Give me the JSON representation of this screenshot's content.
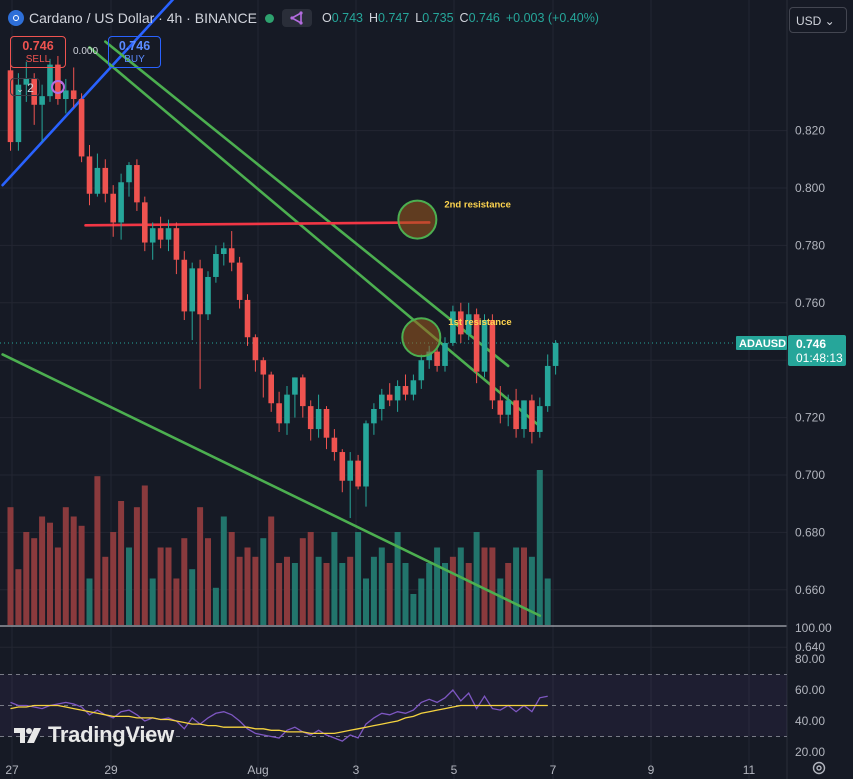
{
  "header": {
    "symbol_title": "Cardano / US Dollar · 4h · BINANCE",
    "ohlc": [
      {
        "label": "O",
        "value": "0.743"
      },
      {
        "label": "H",
        "value": "0.747"
      },
      {
        "label": "L",
        "value": "0.735"
      },
      {
        "label": "C",
        "value": "0.746"
      },
      {
        "label": "",
        "value": "+0.003 (+0.40%)"
      }
    ]
  },
  "trade": {
    "sell_price": "0.746",
    "sell_label": "SELL",
    "spread": "0.000",
    "buy_price": "0.746",
    "buy_label": "BUY"
  },
  "indicators": {
    "count": "2"
  },
  "currency": "USD ⌄",
  "brand": "TradingView",
  "colors": {
    "background": "#161a25",
    "up": "#26a69a",
    "down": "#ef5350",
    "trendline_green": "#4caf50",
    "trendline_blue": "#2962ff",
    "resistance_line": "#f23645",
    "rsi": "#7e57c2",
    "rsi_ma": "#f5d33f",
    "annotation_text": "#ffd54f"
  },
  "chart_data": [
    {
      "type": "candlestick",
      "symbol": "ADAUSD",
      "timeframe": "4h",
      "x_ticks": [
        "27",
        "29",
        "Aug",
        "3",
        "5",
        "7",
        "9",
        "11"
      ],
      "y_ticks": [
        0.64,
        0.66,
        0.68,
        0.7,
        0.72,
        0.74,
        0.76,
        0.78,
        0.8,
        0.82
      ],
      "ylim": [
        0.624,
        0.836
      ],
      "last_price": {
        "symbol_label": "ADAUSD",
        "price": "0.746",
        "countdown": "01:48:13"
      },
      "candles": [
        [
          0.841,
          0.846,
          0.813,
          0.816
        ],
        [
          0.816,
          0.84,
          0.813,
          0.836
        ],
        [
          0.836,
          0.844,
          0.83,
          0.838
        ],
        [
          0.838,
          0.84,
          0.822,
          0.829
        ],
        [
          0.829,
          0.836,
          0.816,
          0.832
        ],
        [
          0.832,
          0.845,
          0.83,
          0.843
        ],
        [
          0.843,
          0.846,
          0.829,
          0.831
        ],
        [
          0.831,
          0.838,
          0.826,
          0.834
        ],
        [
          0.834,
          0.842,
          0.828,
          0.831
        ],
        [
          0.831,
          0.833,
          0.809,
          0.811
        ],
        [
          0.811,
          0.815,
          0.794,
          0.798
        ],
        [
          0.798,
          0.812,
          0.797,
          0.807
        ],
        [
          0.807,
          0.81,
          0.795,
          0.798
        ],
        [
          0.798,
          0.801,
          0.783,
          0.788
        ],
        [
          0.788,
          0.805,
          0.782,
          0.802
        ],
        [
          0.802,
          0.809,
          0.797,
          0.808
        ],
        [
          0.808,
          0.81,
          0.792,
          0.795
        ],
        [
          0.795,
          0.797,
          0.778,
          0.781
        ],
        [
          0.781,
          0.788,
          0.775,
          0.786
        ],
        [
          0.786,
          0.79,
          0.779,
          0.782
        ],
        [
          0.782,
          0.789,
          0.778,
          0.786
        ],
        [
          0.786,
          0.788,
          0.77,
          0.775
        ],
        [
          0.775,
          0.778,
          0.754,
          0.757
        ],
        [
          0.757,
          0.774,
          0.747,
          0.772
        ],
        [
          0.772,
          0.775,
          0.73,
          0.756
        ],
        [
          0.756,
          0.771,
          0.754,
          0.769
        ],
        [
          0.769,
          0.78,
          0.767,
          0.777
        ],
        [
          0.777,
          0.781,
          0.773,
          0.779
        ],
        [
          0.779,
          0.785,
          0.771,
          0.774
        ],
        [
          0.774,
          0.776,
          0.758,
          0.761
        ],
        [
          0.761,
          0.763,
          0.745,
          0.748
        ],
        [
          0.748,
          0.749,
          0.736,
          0.74
        ],
        [
          0.74,
          0.741,
          0.727,
          0.735
        ],
        [
          0.735,
          0.736,
          0.722,
          0.725
        ],
        [
          0.725,
          0.729,
          0.715,
          0.718
        ],
        [
          0.718,
          0.731,
          0.714,
          0.728
        ],
        [
          0.728,
          0.734,
          0.72,
          0.734
        ],
        [
          0.734,
          0.735,
          0.72,
          0.724
        ],
        [
          0.724,
          0.726,
          0.712,
          0.716
        ],
        [
          0.716,
          0.728,
          0.713,
          0.723
        ],
        [
          0.723,
          0.724,
          0.709,
          0.713
        ],
        [
          0.713,
          0.716,
          0.705,
          0.708
        ],
        [
          0.708,
          0.709,
          0.694,
          0.698
        ],
        [
          0.698,
          0.708,
          0.685,
          0.705
        ],
        [
          0.705,
          0.707,
          0.695,
          0.696
        ],
        [
          0.696,
          0.719,
          0.689,
          0.718
        ],
        [
          0.718,
          0.725,
          0.714,
          0.723
        ],
        [
          0.723,
          0.73,
          0.719,
          0.728
        ],
        [
          0.728,
          0.732,
          0.724,
          0.726
        ],
        [
          0.726,
          0.733,
          0.722,
          0.731
        ],
        [
          0.731,
          0.735,
          0.726,
          0.728
        ],
        [
          0.728,
          0.735,
          0.726,
          0.733
        ],
        [
          0.733,
          0.742,
          0.73,
          0.74
        ],
        [
          0.74,
          0.745,
          0.737,
          0.743
        ],
        [
          0.743,
          0.745,
          0.736,
          0.738
        ],
        [
          0.738,
          0.748,
          0.736,
          0.746
        ],
        [
          0.746,
          0.759,
          0.745,
          0.757
        ],
        [
          0.757,
          0.76,
          0.746,
          0.749
        ],
        [
          0.749,
          0.76,
          0.747,
          0.756
        ],
        [
          0.756,
          0.758,
          0.732,
          0.736
        ],
        [
          0.736,
          0.756,
          0.734,
          0.754
        ],
        [
          0.754,
          0.756,
          0.723,
          0.726
        ],
        [
          0.726,
          0.731,
          0.718,
          0.721
        ],
        [
          0.721,
          0.728,
          0.717,
          0.726
        ],
        [
          0.726,
          0.73,
          0.713,
          0.716
        ],
        [
          0.716,
          0.726,
          0.713,
          0.726
        ],
        [
          0.726,
          0.728,
          0.711,
          0.715
        ],
        [
          0.715,
          0.727,
          0.713,
          0.724
        ],
        [
          0.724,
          0.742,
          0.722,
          0.738
        ],
        [
          0.738,
          0.747,
          0.735,
          0.746
        ]
      ],
      "volume": [
        38,
        18,
        30,
        28,
        35,
        33,
        25,
        38,
        35,
        32,
        15,
        48,
        22,
        30,
        40,
        25,
        38,
        45,
        15,
        25,
        25,
        15,
        28,
        18,
        38,
        28,
        12,
        35,
        30,
        22,
        25,
        22,
        28,
        35,
        20,
        22,
        20,
        28,
        30,
        22,
        20,
        30,
        20,
        22,
        30,
        15,
        22,
        25,
        20,
        30,
        20,
        10,
        15,
        20,
        25,
        20,
        22,
        25,
        20,
        30,
        25,
        25,
        15,
        20,
        25,
        25,
        22,
        50,
        15
      ],
      "volume_color": [
        "d",
        "d",
        "d",
        "d",
        "d",
        "d",
        "d",
        "d",
        "d",
        "d",
        "u",
        "d",
        "d",
        "d",
        "d",
        "u",
        "d",
        "d",
        "u",
        "d",
        "d",
        "d",
        "d",
        "u",
        "d",
        "d",
        "u",
        "u",
        "d",
        "d",
        "d",
        "d",
        "u",
        "d",
        "d",
        "d",
        "u",
        "d",
        "d",
        "u",
        "d",
        "u",
        "u",
        "d",
        "u",
        "u",
        "u",
        "u",
        "d",
        "u",
        "u",
        "u",
        "u",
        "u",
        "u",
        "u",
        "d",
        "u",
        "d",
        "u",
        "d",
        "d",
        "u",
        "d",
        "u",
        "d",
        "u",
        "u",
        "u"
      ],
      "trendlines": [
        {
          "color": "blue",
          "points": [
            [
              -1,
              0.801
            ],
            [
              26,
              0.882
            ]
          ]
        },
        {
          "color": "green",
          "points": [
            [
              -1,
              0.742
            ],
            [
              67,
              0.651
            ]
          ]
        },
        {
          "color": "green",
          "points": [
            [
              10,
              0.849
            ],
            [
              67,
              0.717
            ]
          ]
        },
        {
          "color": "green",
          "points": [
            [
              12,
              0.851
            ],
            [
              63,
              0.738
            ]
          ]
        },
        {
          "color": "red",
          "points": [
            [
              9.5,
              0.787
            ],
            [
              53,
              0.788
            ]
          ]
        }
      ],
      "annotations": [
        {
          "label": "2nd resistance",
          "price": 0.789,
          "x_index": 51.5
        },
        {
          "label": "1st resistance",
          "price": 0.748,
          "x_index": 52
        }
      ]
    },
    {
      "type": "line",
      "name": "RSI",
      "y_ticks": [
        "100.00",
        "80.00",
        "60.00",
        "40.00",
        "20.00"
      ],
      "bands": [
        70,
        50,
        30
      ],
      "rsi": [
        52,
        50,
        50,
        49,
        48,
        50,
        51,
        52,
        51,
        49,
        44,
        47,
        44,
        42,
        46,
        47,
        44,
        40,
        42,
        41,
        42,
        40,
        35,
        42,
        38,
        42,
        45,
        46,
        44,
        40,
        35,
        32,
        31,
        30,
        29,
        34,
        36,
        33,
        31,
        34,
        31,
        29,
        27,
        31,
        29,
        38,
        42,
        45,
        44,
        46,
        45,
        47,
        52,
        54,
        52,
        55,
        60,
        53,
        58,
        48,
        56,
        48,
        47,
        50,
        46,
        50,
        46,
        55,
        56
      ],
      "rsi_ma": [
        48,
        49,
        49,
        50,
        50,
        50,
        50,
        49,
        48,
        47,
        46,
        45,
        44,
        43,
        43,
        43,
        42,
        42,
        42,
        41,
        41,
        40,
        39,
        38,
        38,
        37,
        37,
        36,
        36,
        36,
        36,
        35,
        35,
        34,
        34,
        33,
        33,
        33,
        32,
        32,
        32,
        32,
        33,
        34,
        35,
        36,
        37,
        38,
        39,
        40,
        42,
        43,
        45,
        46,
        47,
        48,
        49,
        50,
        50,
        50,
        50,
        50,
        50,
        50,
        50,
        50,
        50,
        50,
        50
      ]
    }
  ]
}
